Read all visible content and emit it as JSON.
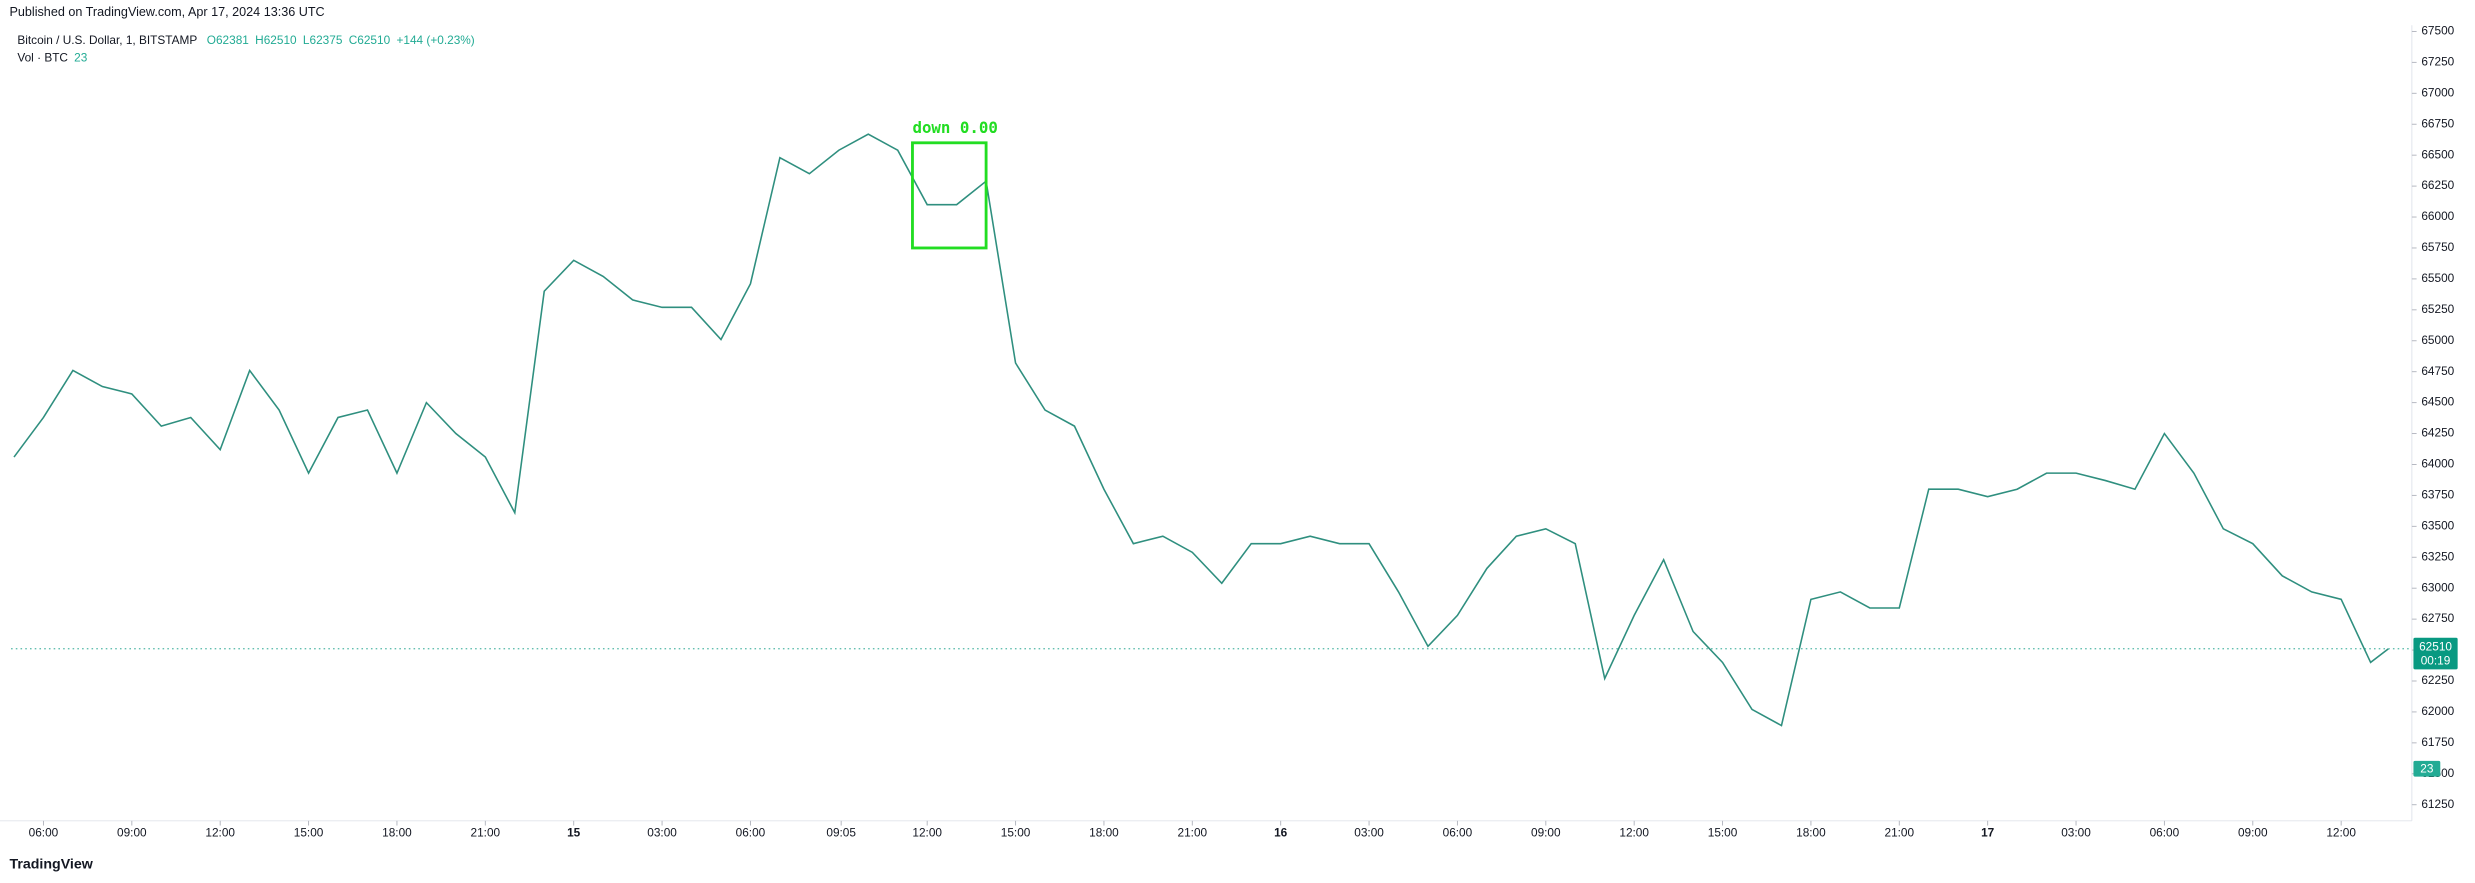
{
  "header": {
    "published": "Published on TradingView.com, Apr 17, 2024 13:36 UTC",
    "symbol": "Bitcoin / U.S. Dollar, 1, BITSTAMP",
    "ohlc": [
      "O62381",
      "H62510",
      "L62375",
      "C62510",
      "+144 (+0.23%)"
    ],
    "volume_label": "Vol · BTC",
    "volume_value": 23,
    "brand": "TradingView"
  },
  "chart_data": {
    "type": "line",
    "x": [
      5,
      6,
      7,
      8,
      9,
      10,
      11,
      12,
      13,
      14,
      15,
      16,
      17,
      18,
      19,
      20,
      21,
      22,
      23,
      24,
      25,
      26,
      27,
      28,
      29,
      30,
      31,
      32,
      33,
      34,
      35,
      36,
      37,
      38,
      39,
      40,
      41,
      42,
      43,
      44,
      45,
      46,
      47,
      48,
      49,
      50,
      51,
      52,
      53,
      54,
      55,
      56,
      57,
      58,
      59,
      60,
      61,
      62,
      63,
      64,
      65,
      66,
      67,
      68,
      69,
      70,
      71,
      72,
      73,
      74,
      75,
      76,
      77,
      78,
      79,
      80,
      81,
      82,
      83,
      84,
      85,
      85.6
    ],
    "series": [
      {
        "name": "BTCUSD",
        "color": "#2f8f7f",
        "values": [
          64060,
          64380,
          64760,
          64630,
          64570,
          64310,
          64380,
          64120,
          64760,
          64440,
          63930,
          64380,
          64440,
          63930,
          64500,
          64250,
          64060,
          63610,
          65400,
          65650,
          65520,
          65330,
          65270,
          65270,
          65010,
          65460,
          66480,
          66350,
          66540,
          66670,
          66540,
          66100,
          66100,
          66290,
          64820,
          64440,
          64310,
          63800,
          63360,
          63420,
          63290,
          63040,
          63360,
          63360,
          63420,
          63360,
          63360,
          62970,
          62530,
          62780,
          63160,
          63420,
          63480,
          63360,
          62270,
          62780,
          63230,
          62650,
          62400,
          62020,
          61890,
          62910,
          62970,
          62840,
          62840,
          63800,
          63800,
          63740,
          63800,
          63930,
          63930,
          63870,
          63800,
          64250,
          63930,
          63480,
          63360,
          63100,
          62970,
          62910,
          62400,
          62510
        ]
      }
    ],
    "xlim": [
      4.9,
      86.4
    ],
    "ylim": [
      61120,
      67550
    ],
    "xticks": [
      {
        "value": 6,
        "label": "06:00"
      },
      {
        "value": 9,
        "label": "09:00"
      },
      {
        "value": 12,
        "label": "12:00"
      },
      {
        "value": 15,
        "label": "15:00"
      },
      {
        "value": 18,
        "label": "18:00"
      },
      {
        "value": 21,
        "label": "21:00"
      },
      {
        "value": 24,
        "label": "15"
      },
      {
        "value": 27,
        "label": "03:00"
      },
      {
        "value": 30,
        "label": "06:00"
      },
      {
        "value": 33.08,
        "label": "09:05"
      },
      {
        "value": 36,
        "label": "12:00"
      },
      {
        "value": 39,
        "label": "15:00"
      },
      {
        "value": 42,
        "label": "18:00"
      },
      {
        "value": 45,
        "label": "21:00"
      },
      {
        "value": 48,
        "label": "16"
      },
      {
        "value": 51,
        "label": "03:00"
      },
      {
        "value": 54,
        "label": "06:00"
      },
      {
        "value": 57,
        "label": "09:00"
      },
      {
        "value": 60,
        "label": "12:00"
      },
      {
        "value": 63,
        "label": "15:00"
      },
      {
        "value": 66,
        "label": "18:00"
      },
      {
        "value": 69,
        "label": "21:00"
      },
      {
        "value": 72,
        "label": "17"
      },
      {
        "value": 75,
        "label": "03:00"
      },
      {
        "value": 78,
        "label": "06:00"
      },
      {
        "value": 81,
        "label": "09:00"
      },
      {
        "value": 84,
        "label": "12:00"
      }
    ],
    "yticks": [
      61250,
      61500,
      61750,
      62000,
      62250,
      62500,
      62750,
      63000,
      63250,
      63500,
      63750,
      64000,
      64250,
      64500,
      64750,
      65000,
      65250,
      65500,
      65750,
      66000,
      66250,
      66500,
      66750,
      67000,
      67250,
      67500
    ],
    "last_price": {
      "value": 62510,
      "countdown": "00:19"
    },
    "annotation": {
      "text": "down 0.00",
      "x": [
        35.5,
        38
      ],
      "y": [
        65750,
        66600
      ],
      "color": "#22dd22"
    }
  }
}
